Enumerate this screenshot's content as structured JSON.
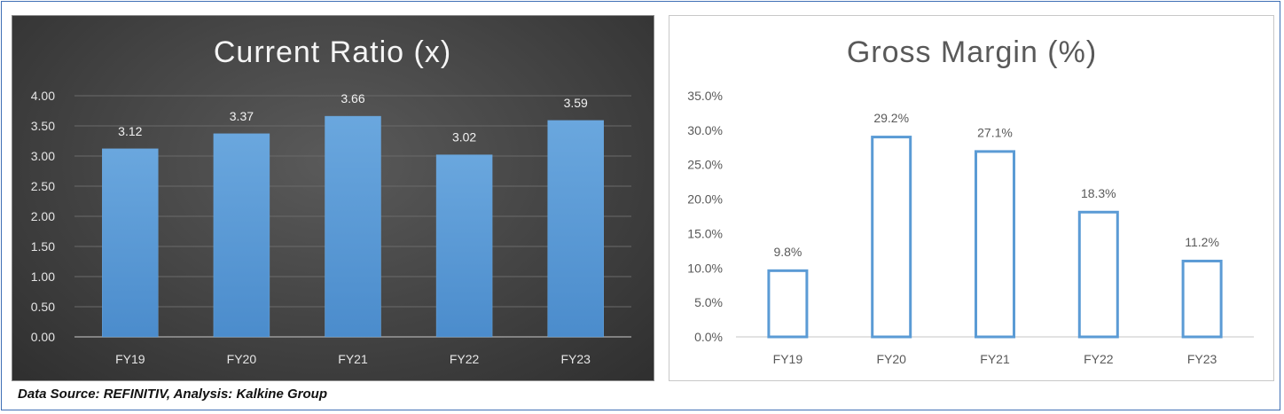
{
  "source_note": "Data Source: REFINITIV, Analysis: Kalkine Group",
  "chart_data": [
    {
      "type": "bar",
      "title": "Current Ratio (x)",
      "categories": [
        "FY19",
        "FY20",
        "FY21",
        "FY22",
        "FY23"
      ],
      "values": [
        3.12,
        3.37,
        3.66,
        3.02,
        3.59
      ],
      "value_labels": [
        "3.12",
        "3.37",
        "3.66",
        "3.02",
        "3.59"
      ],
      "ylim": [
        0,
        4
      ],
      "yticks": [
        "0.00",
        "0.50",
        "1.00",
        "1.50",
        "2.00",
        "2.50",
        "3.00",
        "3.50",
        "4.00"
      ],
      "xlabel": "",
      "ylabel": "",
      "grid": true,
      "legend": "none",
      "style": "filled",
      "colors": {
        "bar": "#5b9bd5",
        "background": "#404040",
        "text": "#f2f2f2",
        "grid": "#6a6a6a"
      }
    },
    {
      "type": "bar",
      "title": "Gross Margin (%)",
      "categories": [
        "FY19",
        "FY20",
        "FY21",
        "FY22",
        "FY23"
      ],
      "values": [
        9.8,
        29.2,
        27.1,
        18.3,
        11.2
      ],
      "value_labels": [
        "9.8%",
        "29.2%",
        "27.1%",
        "18.3%",
        "11.2%"
      ],
      "ylim": [
        0,
        35
      ],
      "yticks": [
        "0.0%",
        "5.0%",
        "10.0%",
        "15.0%",
        "20.0%",
        "25.0%",
        "30.0%",
        "35.0%"
      ],
      "xlabel": "",
      "ylabel": "",
      "grid": false,
      "legend": "none",
      "style": "outline",
      "colors": {
        "bar": "#5b9bd5",
        "background": "#ffffff",
        "text": "#595959",
        "axis": "#d9d9d9"
      }
    }
  ]
}
